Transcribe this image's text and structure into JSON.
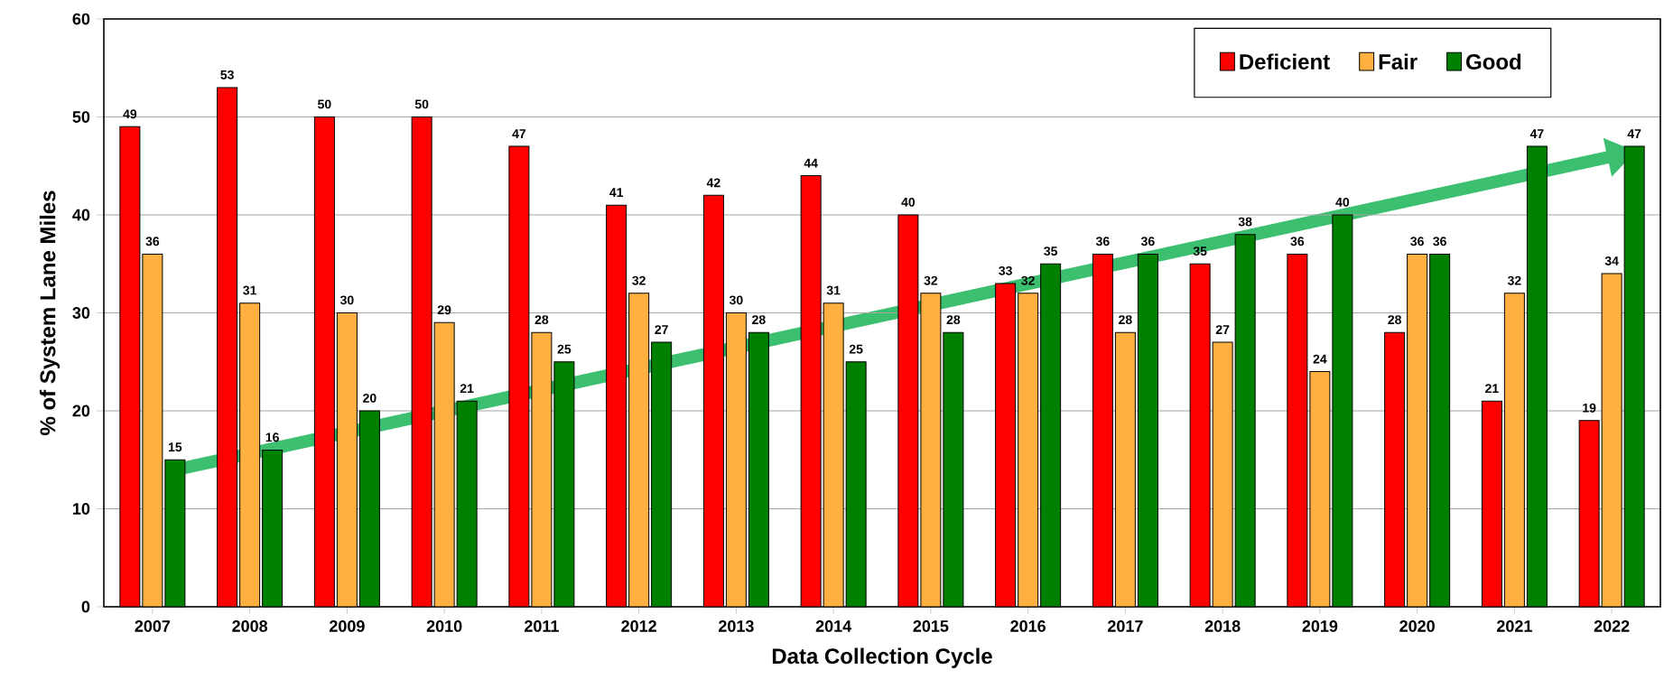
{
  "chart_data": {
    "type": "bar",
    "categories": [
      "2007",
      "2008",
      "2009",
      "2010",
      "2011",
      "2012",
      "2013",
      "2014",
      "2015",
      "2016",
      "2017",
      "2018",
      "2019",
      "2020",
      "2021",
      "2022"
    ],
    "xlabel": "Data Collection Cycle",
    "ylabel": "% of System Lane Miles",
    "series": [
      {
        "name": "Deficient",
        "color": "#ff0000",
        "values": [
          49,
          53,
          50,
          50,
          47,
          41,
          42,
          44,
          40,
          33,
          36,
          35,
          36,
          28,
          21,
          19
        ]
      },
      {
        "name": "Fair",
        "color": "#ffb040",
        "values": [
          36,
          31,
          30,
          29,
          28,
          32,
          30,
          31,
          32,
          32,
          28,
          27,
          24,
          36,
          32,
          34
        ]
      },
      {
        "name": "Good",
        "color": "#008000",
        "values": [
          15,
          16,
          20,
          21,
          25,
          27,
          28,
          25,
          28,
          35,
          36,
          38,
          40,
          36,
          47,
          47
        ]
      }
    ],
    "ylim": [
      0,
      60
    ],
    "yticks": [
      0,
      10,
      20,
      30,
      40,
      50,
      60
    ],
    "grid": "y",
    "legend": "top right",
    "data_labels": true
  }
}
